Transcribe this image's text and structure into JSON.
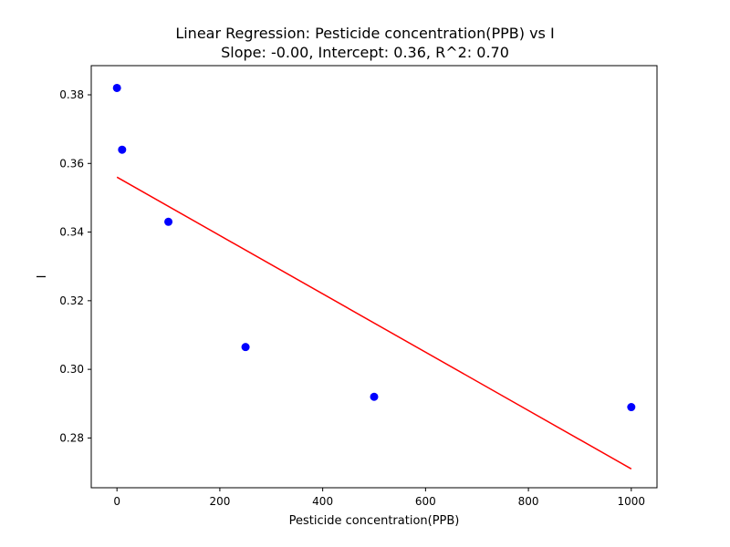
{
  "chart_data": {
    "type": "scatter",
    "title": "Linear Regression: Pesticide concentration(PPB) vs I",
    "subtitle": "Slope: -0.00, Intercept: 0.36, R^2: 0.70",
    "xlabel": "Pesticide concentration(PPB)",
    "ylabel": "I",
    "xlim": [
      -50,
      1050
    ],
    "ylim": [
      0.2655,
      0.3885
    ],
    "xticks": [
      0,
      200,
      400,
      600,
      800,
      1000
    ],
    "yticks": [
      0.28,
      0.3,
      0.32,
      0.34,
      0.36,
      0.38
    ],
    "ytick_labels": [
      "0.28",
      "0.30",
      "0.32",
      "0.34",
      "0.36",
      "0.38"
    ],
    "grid": false,
    "series": [
      {
        "kind": "scatter",
        "color": "#0000ff",
        "x": [
          0,
          10,
          100,
          250,
          500,
          1000
        ],
        "y": [
          0.382,
          0.364,
          0.343,
          0.3065,
          0.292,
          0.289
        ]
      },
      {
        "kind": "line",
        "color": "#ff0000",
        "x": [
          0,
          1000
        ],
        "y": [
          0.356,
          0.271
        ]
      }
    ]
  }
}
